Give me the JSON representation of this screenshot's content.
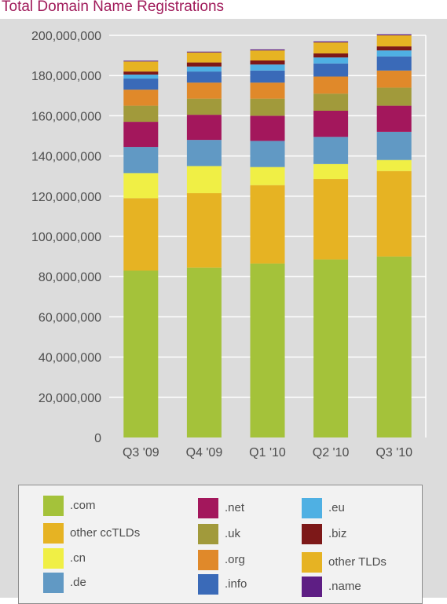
{
  "title": "Total Domain Name Registrations",
  "chart_data": {
    "type": "bar",
    "stacked": true,
    "title": "Total Domain Name Registrations",
    "xlabel": "",
    "ylabel": "",
    "ylim": [
      0,
      200000000
    ],
    "yticks": [
      0,
      20000000,
      40000000,
      60000000,
      80000000,
      100000000,
      120000000,
      140000000,
      160000000,
      180000000,
      200000000
    ],
    "ytick_labels": [
      "0",
      "20,000,000",
      "40,000,000",
      "60,000,000",
      "80,000,000",
      "100,000,000",
      "120,000,000",
      "140,000,000",
      "160,000,000",
      "180,000,000",
      "200,000,000"
    ],
    "grid": true,
    "legend_position": "bottom",
    "categories": [
      "Q3 '09",
      "Q4 '09",
      "Q1 '10",
      "Q2 '10",
      "Q3 '10"
    ],
    "series": [
      {
        "name": ".com",
        "color": "#a4c23a",
        "values": [
          83000000,
          84500000,
          86500000,
          88500000,
          90000000
        ]
      },
      {
        "name": "other ccTLDs",
        "color": "#e6b323",
        "values": [
          36000000,
          37000000,
          39000000,
          40000000,
          42500000
        ]
      },
      {
        "name": ".cn",
        "color": "#f0ef45",
        "values": [
          12500000,
          13500000,
          9000000,
          7500000,
          5500000
        ]
      },
      {
        "name": ".de",
        "color": "#6199c4",
        "values": [
          13000000,
          13000000,
          13000000,
          13500000,
          14000000
        ]
      },
      {
        "name": ".net",
        "color": "#a3175c",
        "values": [
          12500000,
          12500000,
          12500000,
          13000000,
          13000000
        ]
      },
      {
        "name": ".uk",
        "color": "#a19a3b",
        "values": [
          8000000,
          8000000,
          8500000,
          8500000,
          9000000
        ]
      },
      {
        "name": ".org",
        "color": "#e0892a",
        "values": [
          8000000,
          8000000,
          8000000,
          8500000,
          8500000
        ]
      },
      {
        "name": ".info",
        "color": "#3a6ab8",
        "values": [
          5500000,
          5500000,
          6000000,
          6500000,
          7000000
        ]
      },
      {
        "name": ".eu",
        "color": "#4fb0e3",
        "values": [
          2000000,
          2500000,
          3000000,
          3000000,
          3000000
        ]
      },
      {
        "name": ".biz",
        "color": "#7d1818",
        "values": [
          1500000,
          2000000,
          2000000,
          2000000,
          2000000
        ]
      },
      {
        "name": "other TLDs",
        "color": "#e6b323",
        "values": [
          5000000,
          5000000,
          5000000,
          5500000,
          5500000
        ]
      },
      {
        "name": ".name",
        "color": "#5e1e84",
        "values": [
          400000,
          400000,
          500000,
          500000,
          500000
        ]
      }
    ]
  }
}
